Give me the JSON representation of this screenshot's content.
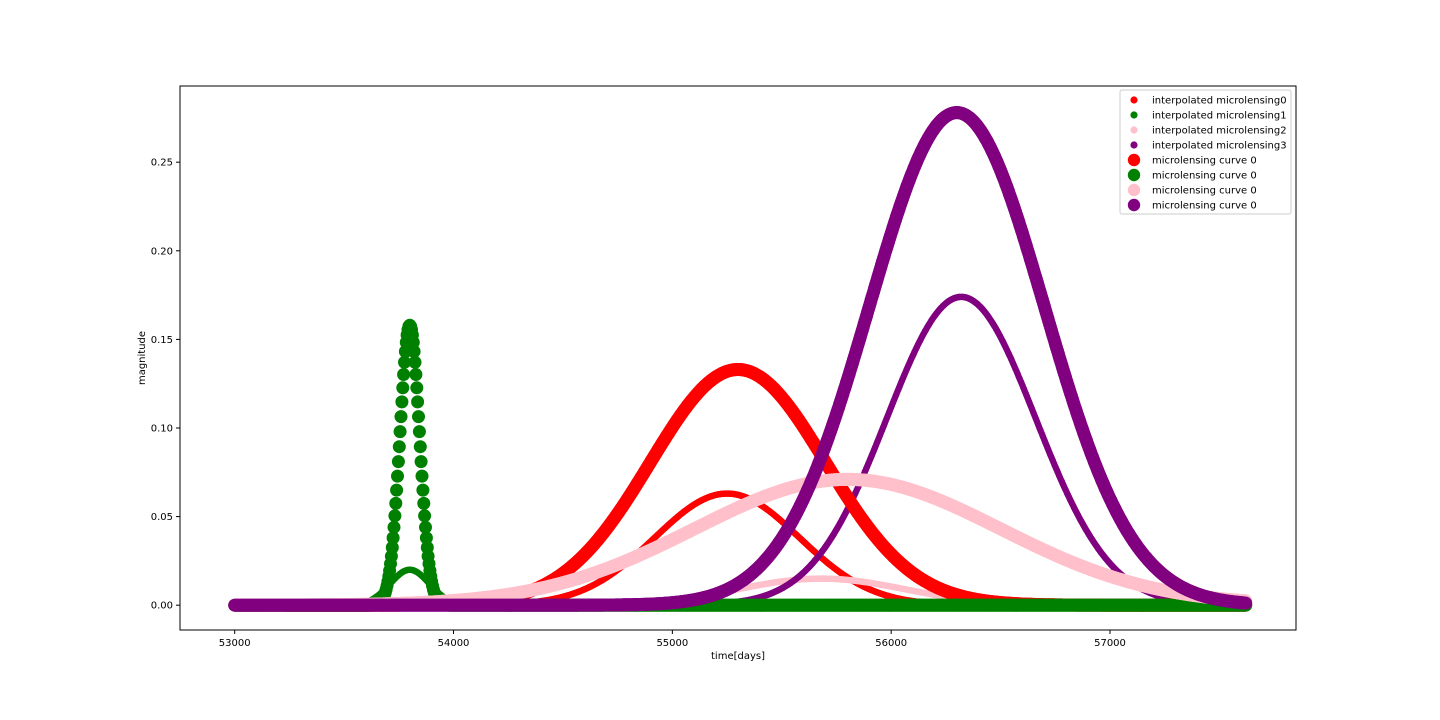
{
  "chart_data": {
    "type": "scatter",
    "title": "",
    "xlabel": "time[days]",
    "ylabel": "magnitude",
    "xlim": [
      52750,
      57850
    ],
    "ylim": [
      -0.014,
      0.293
    ],
    "xticks": [
      53000,
      54000,
      55000,
      56000,
      57000
    ],
    "yticks": [
      0.0,
      0.05,
      0.1,
      0.15,
      0.2,
      0.25
    ],
    "xtick_labels": [
      "53000",
      "54000",
      "55000",
      "56000",
      "57000"
    ],
    "ytick_labels": [
      "0.00",
      "0.05",
      "0.10",
      "0.15",
      "0.20",
      "0.25"
    ],
    "grid": false,
    "legend_position": "top-right",
    "x_start": 53000,
    "x_end": 57620,
    "series": [
      {
        "name": "interpolated microlensing0",
        "color": "#ff0000",
        "marker": "small",
        "peak_x": 55250,
        "peak_y": 0.063,
        "width_days": 330
      },
      {
        "name": "interpolated microlensing1",
        "color": "#008000",
        "marker": "small",
        "peak_x": 53800,
        "peak_y": 0.02,
        "width_days": 90
      },
      {
        "name": "interpolated microlensing2",
        "color": "#ffc0cb",
        "marker": "small",
        "peak_x": 55680,
        "peak_y": 0.015,
        "width_days": 380
      },
      {
        "name": "interpolated microlensing3",
        "color": "#800080",
        "marker": "small",
        "peak_x": 56320,
        "peak_y": 0.174,
        "width_days": 340
      },
      {
        "name": "microlensing curve 0",
        "color": "#ff0000",
        "marker": "large",
        "peak_x": 55300,
        "peak_y": 0.133,
        "width_days": 400
      },
      {
        "name": "microlensing curve 0",
        "color": "#008000",
        "marker": "large",
        "peak_x": 53800,
        "peak_y": 0.158,
        "width_days": 45
      },
      {
        "name": "microlensing curve 0",
        "color": "#ffc0cb",
        "marker": "large",
        "peak_x": 55800,
        "peak_y": 0.071,
        "width_days": 700
      },
      {
        "name": "microlensing curve 0",
        "color": "#800080",
        "marker": "large",
        "peak_x": 56300,
        "peak_y": 0.278,
        "width_days": 400
      }
    ]
  }
}
